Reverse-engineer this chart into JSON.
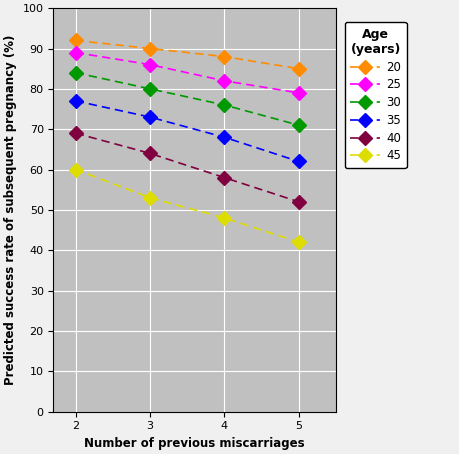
{
  "x": [
    2,
    3,
    4,
    5
  ],
  "series": {
    "20": {
      "values": [
        92,
        90,
        88,
        85
      ],
      "color": "#FF8C00",
      "label": "20"
    },
    "25": {
      "values": [
        89,
        86,
        82,
        79
      ],
      "color": "#FF00FF",
      "label": "25"
    },
    "30": {
      "values": [
        84,
        80,
        76,
        71
      ],
      "color": "#009900",
      "label": "30"
    },
    "35": {
      "values": [
        77,
        73,
        68,
        62
      ],
      "color": "#0000FF",
      "label": "35"
    },
    "40": {
      "values": [
        69,
        64,
        58,
        52
      ],
      "color": "#800040",
      "label": "40"
    },
    "45": {
      "values": [
        60,
        53,
        48,
        42
      ],
      "color": "#DDDD00",
      "label": "45"
    }
  },
  "xlabel": "Number of previous miscarriages",
  "ylabel": "Predicted success rate of subsequent pregnancy (%)",
  "legend_title": "Age\n(years)",
  "ylim": [
    0,
    100
  ],
  "xlim": [
    1.7,
    5.5
  ],
  "yticks": [
    0,
    10,
    20,
    30,
    40,
    50,
    60,
    70,
    80,
    90,
    100
  ],
  "xticks": [
    2,
    3,
    4,
    5
  ],
  "plot_bg": "#C0C0C0",
  "fig_bg": "#F0F0F0"
}
